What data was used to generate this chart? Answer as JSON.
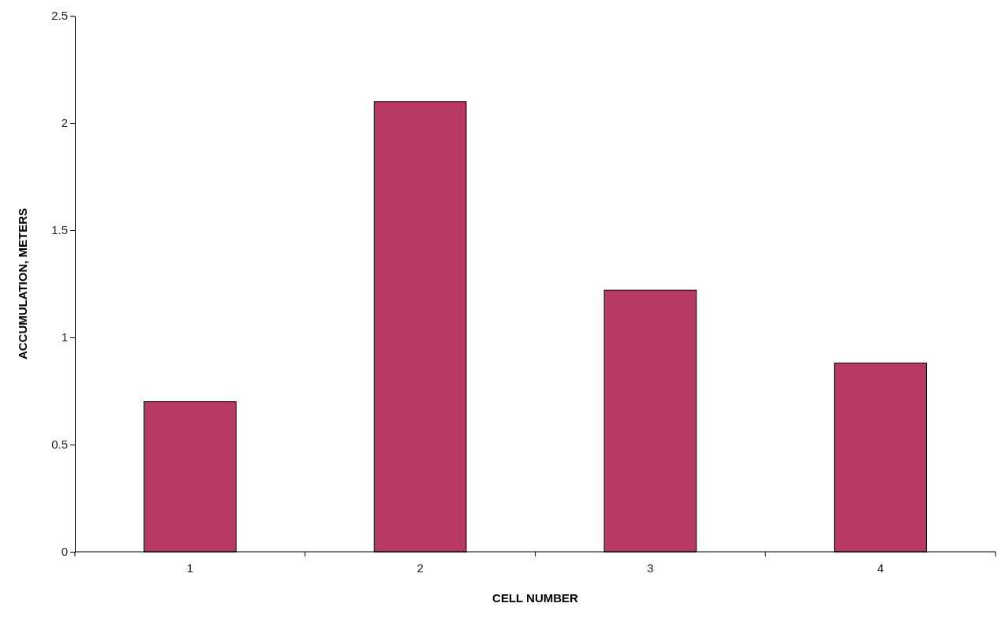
{
  "chart_data": {
    "type": "bar",
    "xlabel": "CELL NUMBER",
    "ylabel": "ACCUMULATION, METERS",
    "categories": [
      "1",
      "2",
      "3",
      "4"
    ],
    "values": [
      0.7,
      2.1,
      1.22,
      0.88
    ],
    "color": "#b83a64",
    "ylim": [
      0,
      2.5
    ],
    "yticks": [
      0,
      0.5,
      1,
      1.5,
      2,
      2.5
    ],
    "grid": false,
    "legend": false
  }
}
